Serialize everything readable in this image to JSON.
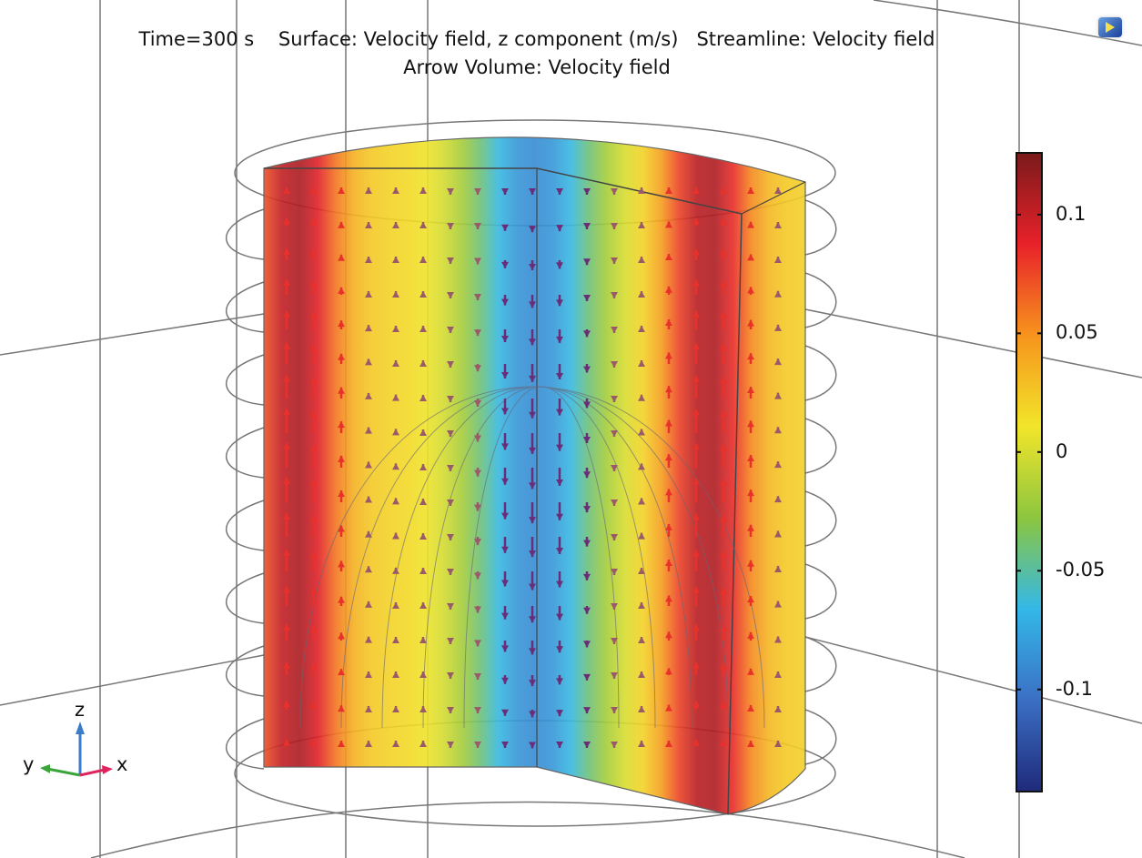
{
  "title": {
    "line1": "Time=300 s    Surface: Velocity field, z component (m/s)   Streamline: Velocity field",
    "line2": "Arrow Volume: Velocity field"
  },
  "toolbar": {
    "camera_icon": "camera-view-icon"
  },
  "axes_triad": {
    "x": "x",
    "y": "y",
    "z": "z",
    "colors": {
      "x": "#e0245e",
      "y": "#3aa53a",
      "z": "#3a7cc8"
    }
  },
  "chart_data": {
    "type": "heatmap",
    "title": "Time=300 s    Surface: Velocity field, z component (m/s)   Streamline: Velocity field / Arrow Volume: Velocity field",
    "colorbar": {
      "range": [
        -0.143,
        0.126
      ],
      "ticks": [
        0.1,
        0.05,
        0,
        -0.05,
        -0.1
      ],
      "tick_labels": [
        "0.1",
        "0.05",
        "0",
        "-0.05",
        "-0.1"
      ],
      "colormap": [
        "#1f2a7a",
        "#3b6fc4",
        "#33b8e8",
        "#8cc63f",
        "#f2e52a",
        "#f7941d",
        "#e8212a",
        "#7a1a1a"
      ]
    },
    "surface_profile": "upflow (red) near walls, downflow (blue) in center"
  }
}
